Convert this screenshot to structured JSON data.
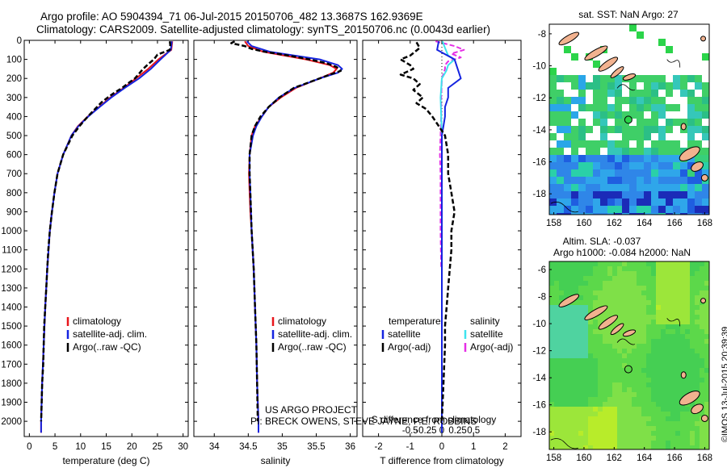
{
  "header": {
    "line1": "Argo profile: AO 5904394_71 06-Jul-2015 20150706_482 13.3687S 162.9369E",
    "line2": "Climatology: CARS2009. Satellite-adjusted climatology: synTS_20150706.nc (0.0043d earlier)"
  },
  "footer": {
    "project": "US ARGO PROJECT",
    "pi": "PI: BRECK OWENS, STEVE JAYNE, P.E. ROBBINS",
    "credit": "©IMOS 13-Jul-2015 20:39:39"
  },
  "colors": {
    "climatology": "#e8151b",
    "satellite": "#1524e0",
    "argo": "#000000",
    "sal_satellite": "#3ee3ee",
    "sal_argo": "#e52ee5"
  },
  "chart_data": [
    {
      "id": "temperature",
      "type": "line",
      "xlabel": "temperature (deg C)",
      "ylabel": "",
      "xlim": [
        -1,
        31
      ],
      "ylim": [
        2080,
        0
      ],
      "y_reversed": true,
      "x_ticks": [
        0,
        5,
        10,
        15,
        20,
        25,
        30
      ],
      "y_ticks": [
        0,
        100,
        200,
        300,
        400,
        500,
        600,
        700,
        800,
        900,
        1000,
        1100,
        1200,
        1300,
        1400,
        1500,
        1600,
        1700,
        1800,
        1900,
        2000
      ],
      "legend": [
        "climatology",
        "satellite-adj. clim.",
        "Argo(..raw -QC)"
      ],
      "series": [
        {
          "name": "climatology",
          "depth": [
            5,
            50,
            100,
            150,
            200,
            250,
            300,
            350,
            400,
            450,
            500,
            600,
            700,
            800,
            900,
            1000,
            1200,
            1400,
            1600,
            1800,
            2000,
            2060
          ],
          "values": [
            27.9,
            27.7,
            25.2,
            23.2,
            20.8,
            18.4,
            15.8,
            13.6,
            11.4,
            9.5,
            8.2,
            6.6,
            5.5,
            4.9,
            4.4,
            4.0,
            3.5,
            3.1,
            2.8,
            2.5,
            2.3,
            2.3
          ]
        },
        {
          "name": "satellite-adj. clim.",
          "depth": [
            5,
            50,
            100,
            150,
            200,
            250,
            300,
            350,
            400,
            450,
            500,
            600,
            700,
            800,
            900,
            1000,
            1200,
            1400,
            1600,
            1800,
            2000,
            2060
          ],
          "values": [
            27.8,
            27.6,
            25.6,
            23.7,
            21.4,
            18.6,
            16.0,
            13.7,
            11.5,
            9.6,
            8.2,
            6.6,
            5.5,
            4.9,
            4.4,
            4.0,
            3.5,
            3.1,
            2.8,
            2.5,
            2.3,
            2.3
          ]
        },
        {
          "name": "Argo(..raw -QC)",
          "depth": [
            5,
            25,
            50,
            75,
            100,
            125,
            150,
            175,
            200,
            225,
            250,
            275,
            300,
            325,
            350,
            375,
            400,
            450,
            500,
            600,
            700,
            800,
            900,
            1000,
            1100,
            1200,
            1300,
            1400,
            1500,
            1600,
            1700,
            1800,
            1900,
            2000
          ],
          "values": [
            27.4,
            27.5,
            27.4,
            25.0,
            24.3,
            23.2,
            22.2,
            21.4,
            20.6,
            19.3,
            18.1,
            16.6,
            15.3,
            14.1,
            13.2,
            12.3,
            11.4,
            9.8,
            8.4,
            6.6,
            5.5,
            4.9,
            4.4,
            4.0,
            3.7,
            3.5,
            3.3,
            3.1,
            2.9,
            2.8,
            2.7,
            2.5,
            2.4,
            2.3
          ]
        }
      ]
    },
    {
      "id": "salinity",
      "type": "line",
      "xlabel": "salinity",
      "ylabel": "",
      "xlim": [
        33.7,
        36.1
      ],
      "ylim": [
        2080,
        0
      ],
      "y_reversed": true,
      "x_ticks": [
        34,
        34.5,
        35,
        35.5,
        36
      ],
      "x_tick_labels": [
        "34",
        "34.5",
        "35",
        "35.5",
        "36"
      ],
      "legend": [
        "climatology",
        "satellite-adj. clim.",
        "Argo(..raw -QC)"
      ],
      "series": [
        {
          "name": "climatology",
          "depth": [
            5,
            30,
            60,
            100,
            130,
            150,
            170,
            200,
            250,
            300,
            350,
            400,
            450,
            500,
            600,
            700,
            800,
            900,
            1000,
            1200,
            1400,
            1600,
            1800,
            2000,
            2060
          ],
          "values": [
            34.45,
            34.5,
            34.72,
            35.35,
            35.7,
            35.8,
            35.75,
            35.55,
            35.2,
            34.98,
            34.8,
            34.7,
            34.6,
            34.55,
            34.52,
            34.51,
            34.52,
            34.53,
            34.55,
            34.58,
            34.6,
            34.62,
            34.63,
            34.65,
            34.65
          ]
        },
        {
          "name": "satellite-adj. clim.",
          "depth": [
            5,
            30,
            60,
            100,
            130,
            150,
            170,
            200,
            250,
            300,
            350,
            400,
            450,
            500,
            600,
            700,
            800,
            900,
            1000,
            1200,
            1400,
            1600,
            1800,
            2000,
            2060
          ],
          "values": [
            34.48,
            34.55,
            34.82,
            35.55,
            35.82,
            35.88,
            35.82,
            35.55,
            35.18,
            34.95,
            34.8,
            34.7,
            34.62,
            34.57,
            34.52,
            34.52,
            34.53,
            34.54,
            34.55,
            34.58,
            34.6,
            34.62,
            34.63,
            34.65,
            34.65
          ]
        },
        {
          "name": "Argo(..raw -QC)",
          "depth": [
            5,
            15,
            30,
            45,
            60,
            80,
            100,
            120,
            140,
            160,
            180,
            200,
            250,
            300,
            350,
            400,
            450,
            500,
            600,
            700,
            800,
            900,
            1000,
            1200,
            1400,
            1600,
            1800,
            2000
          ],
          "values": [
            34.3,
            34.25,
            34.45,
            34.55,
            34.75,
            35.1,
            35.4,
            35.65,
            35.8,
            35.86,
            35.7,
            35.55,
            35.17,
            34.96,
            34.8,
            34.68,
            34.6,
            34.55,
            34.52,
            34.52,
            34.53,
            34.54,
            34.55,
            34.58,
            34.6,
            34.62,
            34.63,
            34.64
          ]
        }
      ]
    },
    {
      "id": "difference",
      "type": "line",
      "xlabel": "T difference from climatology",
      "xlabel_top": "S difference from climatology",
      "xlim": [
        -2.5,
        2.5
      ],
      "ylim": [
        2080,
        0
      ],
      "y_reversed": true,
      "x_ticks": [
        -2,
        -1,
        0,
        1,
        2
      ],
      "x_ticks_top": [
        -0.5,
        -0.25,
        0,
        0.25,
        0.5
      ],
      "x_tick_labels_top": [
        "-0.5",
        "-0.25",
        "0",
        "0.25",
        "0.5"
      ],
      "legend_titles": [
        "temperature",
        "salinity"
      ],
      "legend": [
        "satellite",
        "Argo(-adj)",
        "satellite",
        "Argo(-adj)"
      ],
      "series": [
        {
          "name": "satellite",
          "group": "temperature",
          "depth": [
            5,
            50,
            100,
            150,
            200,
            250,
            300,
            350,
            400,
            450,
            500,
            600,
            700,
            800,
            900,
            1000,
            1200,
            1400,
            1600,
            1800,
            2000,
            2060
          ],
          "values": [
            -0.1,
            -0.15,
            0.4,
            0.5,
            0.6,
            0.2,
            0.2,
            0.1,
            0.1,
            0.05,
            0.0,
            0.0,
            0.0,
            0.0,
            0.0,
            0.0,
            0.0,
            0.0,
            0.0,
            0.0,
            0.0,
            0.0
          ]
        },
        {
          "name": "Argo(-adj)",
          "group": "temperature",
          "depth": [
            10,
            40,
            80,
            100,
            130,
            150,
            180,
            200,
            230,
            260,
            300,
            330,
            360,
            400,
            450,
            500,
            600,
            700,
            800,
            900,
            1000,
            1100,
            1200,
            1300,
            1400,
            1500,
            1600,
            1800,
            2000
          ],
          "values": [
            -0.8,
            -0.7,
            -1.0,
            -1.3,
            -1.0,
            -0.9,
            -1.3,
            -0.9,
            -0.7,
            -0.9,
            -0.6,
            -0.8,
            -0.5,
            -0.3,
            -0.1,
            0.1,
            0.2,
            0.2,
            0.3,
            0.4,
            0.3,
            0.3,
            0.25,
            0.2,
            0.15,
            0.1,
            0.1,
            0.05,
            0.0
          ]
        },
        {
          "name": "satellite",
          "group": "salinity",
          "depth": [
            5,
            40,
            80,
            100,
            130,
            160,
            200,
            300,
            400,
            500,
            600,
            800,
            1000,
            1200,
            1400,
            1600,
            1800,
            2000,
            2060
          ],
          "values": [
            0.01,
            0.05,
            0.1,
            0.2,
            0.1,
            0.07,
            0.0,
            -0.02,
            -0.01,
            0.0,
            0.0,
            0.0,
            0.0,
            0.0,
            0.0,
            0.0,
            0.0,
            0.0,
            0.0
          ]
        },
        {
          "name": "Argo(-adj)",
          "group": "salinity",
          "depth": [
            5,
            15,
            30,
            50,
            70,
            90,
            110,
            130,
            150,
            200,
            300,
            400,
            500,
            600,
            700,
            800,
            900,
            1000,
            1200
          ],
          "values": [
            -0.1,
            0.02,
            0.2,
            0.35,
            0.15,
            0.3,
            0.1,
            0.05,
            0.05,
            0.0,
            -0.01,
            -0.01,
            -0.02,
            -0.03,
            -0.02,
            -0.02,
            -0.02,
            -0.02,
            -0.01
          ]
        }
      ]
    },
    {
      "id": "sst-map",
      "type": "heatmap",
      "title": "sat. SST: NaN Argo: 27",
      "x_ticks": [
        158,
        160,
        162,
        164,
        166,
        168
      ],
      "y_ticks": [
        -8,
        -10,
        -12,
        -14,
        -16,
        -18
      ],
      "xlim": [
        157.7,
        168.3
      ],
      "ylim": [
        -19.3,
        -7.4
      ]
    },
    {
      "id": "sla-map",
      "type": "heatmap",
      "title": "Altim. SLA: -0.037",
      "subtitle": "Argo h1000: -0.084 h2000: NaN",
      "x_ticks": [
        158,
        160,
        162,
        164,
        166,
        168
      ],
      "y_ticks": [
        -6,
        -8,
        -10,
        -12,
        -14,
        -16,
        -18
      ],
      "xlim": [
        157.7,
        168.3
      ],
      "ylim": [
        -19.3,
        -5.4
      ]
    }
  ]
}
